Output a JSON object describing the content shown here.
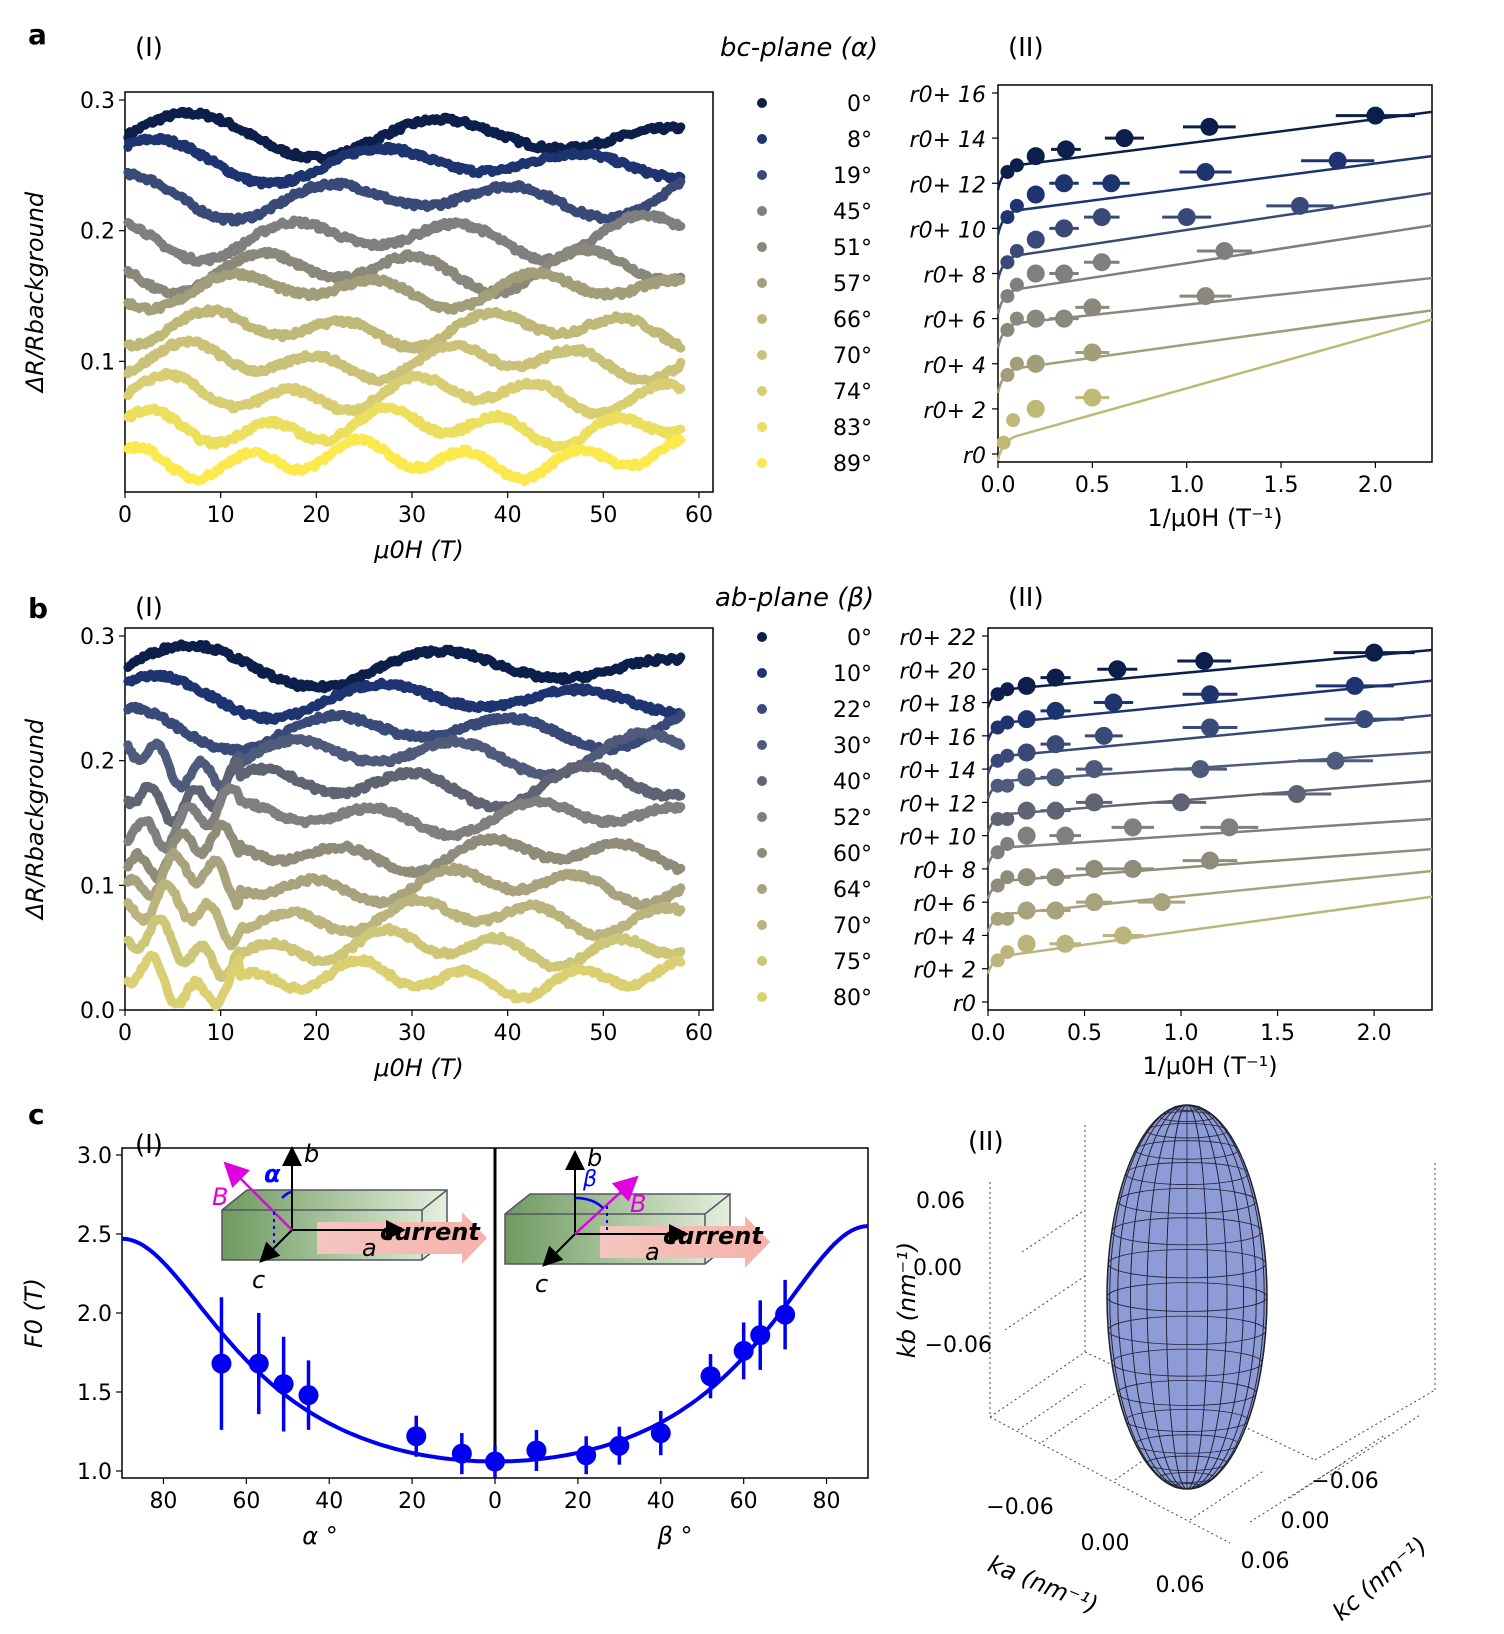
{
  "panels": {
    "a": "a",
    "b": "b",
    "c": "c",
    "I": "(I)",
    "II": "(II)"
  },
  "colors": {
    "a": [
      "#0c1f4b",
      "#1d3470",
      "#394a78",
      "#7f7f7f",
      "#8a887a",
      "#a39e7a",
      "#c0b877",
      "#cbc27a",
      "#d8cd72",
      "#ecdf5e",
      "#fbe94d"
    ],
    "b": [
      "#0c1f4b",
      "#1d3470",
      "#394a78",
      "#4f5b7a",
      "#5f6373",
      "#7f7f7f",
      "#8f8c7a",
      "#a8a37d",
      "#bbb47c",
      "#cdc577",
      "#dbd071"
    ],
    "fit": "#0000ee",
    "magenta": "#e000e0"
  },
  "chart_data": [
    {
      "id": "a-I",
      "type": "line",
      "title": "bc-plane (α)",
      "xlabel": "μ0H (T)",
      "ylabel": "ΔR/Rbackground",
      "xlim": [
        0,
        60
      ],
      "ylim": [
        0,
        0.3
      ],
      "xticks": [
        "0",
        "10",
        "20",
        "30",
        "40",
        "50",
        "60"
      ],
      "yticks": [
        "0.1",
        "0.2",
        "0.3"
      ],
      "legend": [
        "0°",
        "8°",
        "19°",
        "45°",
        "51°",
        "57°",
        "66°",
        "70°",
        "74°",
        "83°",
        "89°"
      ],
      "offsets": [
        0.272,
        0.252,
        0.225,
        0.195,
        0.17,
        0.155,
        0.125,
        0.1,
        0.075,
        0.05,
        0.025
      ]
    },
    {
      "id": "a-II",
      "type": "scatter",
      "xlabel": "1/μ0H (T⁻¹)",
      "xlim": [
        0,
        2.3
      ],
      "xticks": [
        "0.0",
        "0.5",
        "1.0",
        "1.5",
        "2.0"
      ],
      "yticks": [
        "r0",
        "r0+ 2",
        "r0+ 4",
        "r0+ 6",
        "r0+ 8",
        "r0+ 10",
        "r0+ 12",
        "r0+ 14",
        "r0+ 16"
      ],
      "series": [
        {
          "x": [
            0.05,
            0.1,
            0.2,
            0.36,
            0.67,
            1.12,
            2.0
          ],
          "y": [
            12.5,
            12.8,
            13.2,
            13.5,
            14,
            14.5,
            15
          ]
        },
        {
          "x": [
            0.05,
            0.1,
            0.2,
            0.35,
            0.6,
            1.1,
            1.8
          ],
          "y": [
            10.5,
            11,
            11.5,
            12,
            12,
            12.5,
            13
          ]
        },
        {
          "x": [
            0.05,
            0.1,
            0.2,
            0.35,
            0.55,
            1.0,
            1.6
          ],
          "y": [
            8.5,
            9,
            9.5,
            10,
            10.5,
            10.5,
            11
          ]
        },
        {
          "x": [
            0.05,
            0.1,
            0.2,
            0.35,
            0.55,
            1.2
          ],
          "y": [
            7,
            7.5,
            8,
            8,
            8.5,
            9
          ]
        },
        {
          "x": [
            0.05,
            0.1,
            0.2,
            0.35,
            0.5,
            1.1
          ],
          "y": [
            5.5,
            6,
            6,
            6,
            6.5,
            7
          ]
        },
        {
          "x": [
            0.05,
            0.1,
            0.2,
            0.5
          ],
          "y": [
            3.5,
            4,
            4,
            4.5
          ]
        },
        {
          "x": [
            0.03,
            0.08,
            0.2,
            0.5
          ],
          "y": [
            0.5,
            1.5,
            2,
            2.5
          ]
        }
      ]
    },
    {
      "id": "b-I",
      "type": "line",
      "title": "ab-plane (β)",
      "xlabel": "μ0H (T)",
      "ylabel": "ΔR/Rbackground",
      "xlim": [
        0,
        60
      ],
      "ylim": [
        0,
        0.3
      ],
      "xticks": [
        "0",
        "10",
        "20",
        "30",
        "40",
        "50",
        "60"
      ],
      "yticks": [
        "0.0",
        "0.1",
        "0.2",
        "0.3"
      ],
      "legend": [
        "0°",
        "10°",
        "22°",
        "30°",
        "40°",
        "52°",
        "60°",
        "64°",
        "70°",
        "75°",
        "80°"
      ],
      "offsets": [
        0.275,
        0.25,
        0.225,
        0.205,
        0.18,
        0.155,
        0.125,
        0.1,
        0.075,
        0.05,
        0.025
      ]
    },
    {
      "id": "b-II",
      "type": "scatter",
      "xlabel": "1/μ0H (T⁻¹)",
      "xlim": [
        0,
        2.3
      ],
      "xticks": [
        "0.0",
        "0.5",
        "1.0",
        "1.5",
        "2.0"
      ],
      "yticks": [
        "r0",
        "r0+ 2",
        "r0+ 4",
        "r0+ 6",
        "r0+ 8",
        "r0+ 10",
        "r0+ 12",
        "r0+ 14",
        "r0+ 16",
        "r0+ 18",
        "r0+ 20",
        "r0+ 22"
      ],
      "series": [
        {
          "x": [
            0.05,
            0.1,
            0.2,
            0.35,
            0.67,
            1.12,
            2.0
          ],
          "y": [
            18.5,
            18.8,
            19,
            19.5,
            20,
            20.5,
            21
          ]
        },
        {
          "x": [
            0.05,
            0.1,
            0.2,
            0.35,
            0.65,
            1.15,
            1.9
          ],
          "y": [
            16.5,
            16.8,
            17,
            17.5,
            18,
            18.5,
            19
          ]
        },
        {
          "x": [
            0.05,
            0.1,
            0.2,
            0.35,
            0.6,
            1.15,
            1.95
          ],
          "y": [
            14.5,
            14.8,
            15,
            15.5,
            16,
            16.5,
            17
          ]
        },
        {
          "x": [
            0.05,
            0.1,
            0.2,
            0.35,
            0.55,
            1.1,
            1.8
          ],
          "y": [
            13,
            13,
            13.5,
            13.5,
            14,
            14,
            14.5
          ]
        },
        {
          "x": [
            0.05,
            0.1,
            0.2,
            0.35,
            0.55,
            1.0,
            1.6
          ],
          "y": [
            11,
            11,
            11.5,
            11.5,
            12,
            12,
            12.5
          ]
        },
        {
          "x": [
            0.05,
            0.1,
            0.2,
            0.4,
            0.75,
            1.25
          ],
          "y": [
            9,
            9.5,
            10,
            10,
            10.5,
            10.5
          ]
        },
        {
          "x": [
            0.05,
            0.1,
            0.2,
            0.35,
            0.55,
            0.75,
            1.15
          ],
          "y": [
            7,
            7.5,
            7.5,
            7.5,
            8,
            8,
            8.5
          ]
        },
        {
          "x": [
            0.05,
            0.1,
            0.2,
            0.35,
            0.55,
            0.9
          ],
          "y": [
            5,
            5,
            5.5,
            5.5,
            6,
            6
          ]
        },
        {
          "x": [
            0.05,
            0.1,
            0.2,
            0.4,
            0.7
          ],
          "y": [
            2.5,
            3,
            3.5,
            3.5,
            4
          ]
        }
      ]
    },
    {
      "id": "c-I",
      "type": "scatter",
      "xlabel_left": "α °",
      "xlabel_right": "β °",
      "ylabel": "F0 (T)",
      "ylim": [
        1.0,
        3.0
      ],
      "yticks": [
        "1.0",
        "1.5",
        "2.0",
        "2.5",
        "3.0"
      ],
      "xticks": [
        "80",
        "60",
        "40",
        "20",
        "0",
        "20",
        "40",
        "60",
        "80"
      ],
      "points": [
        {
          "x": -66,
          "y": 1.68,
          "err": 0.42
        },
        {
          "x": -57,
          "y": 1.68,
          "err": 0.32
        },
        {
          "x": -51,
          "y": 1.55,
          "err": 0.3
        },
        {
          "x": -45,
          "y": 1.48,
          "err": 0.22
        },
        {
          "x": -19,
          "y": 1.22,
          "err": 0.13
        },
        {
          "x": -8,
          "y": 1.11,
          "err": 0.13
        },
        {
          "x": 0,
          "y": 1.06,
          "err": 0.1
        },
        {
          "x": 10,
          "y": 1.13,
          "err": 0.13
        },
        {
          "x": 22,
          "y": 1.1,
          "err": 0.12
        },
        {
          "x": 30,
          "y": 1.16,
          "err": 0.12
        },
        {
          "x": 40,
          "y": 1.24,
          "err": 0.14
        },
        {
          "x": 52,
          "y": 1.6,
          "err": 0.14
        },
        {
          "x": 60,
          "y": 1.76,
          "err": 0.18
        },
        {
          "x": 64,
          "y": 1.86,
          "err": 0.22
        },
        {
          "x": 70,
          "y": 1.99,
          "err": 0.22
        }
      ],
      "fit": {
        "min": 1.06,
        "max_left": 2.47,
        "max_right": 2.55
      },
      "inset_left": {
        "b": "b",
        "a": "a",
        "c": "c",
        "B": "B",
        "angle": "α",
        "current": "current"
      },
      "inset_right": {
        "b": "b",
        "a": "a",
        "c": "c",
        "B": "B",
        "angle": "β",
        "current": "current"
      }
    },
    {
      "id": "c-II",
      "type": "surface3d",
      "zlabel": "kb (nm⁻¹)",
      "xlabel": "ka (nm⁻¹)",
      "ylabel": "kc (nm⁻¹)",
      "zticks": [
        "0.06",
        "0.00",
        "−0.06"
      ],
      "xticks": [
        "−0.06",
        "0.00",
        "0.06"
      ],
      "yticks": [
        "−0.06",
        "0.00",
        "0.06"
      ],
      "fill": "#8d9bd6"
    }
  ]
}
